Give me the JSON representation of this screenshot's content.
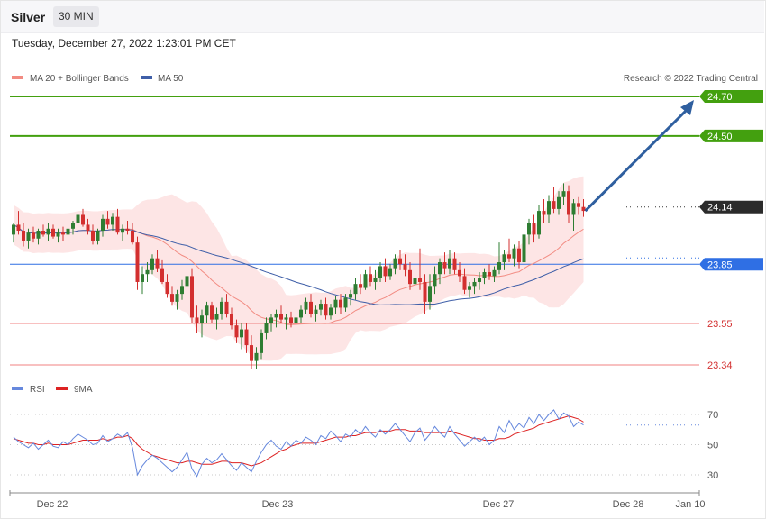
{
  "header": {
    "asset": "Silver",
    "timeframe": "30 MIN",
    "datetime": "Tuesday, December 27, 2022 1:23:01 PM CET"
  },
  "legend": {
    "ma20_label": "MA 20 + Bollinger Bands",
    "ma50_label": "MA 50",
    "credit": "Research © 2022 Trading Central",
    "rsi_label": "RSI",
    "rsi_ma_label": "9MA"
  },
  "colors": {
    "up": "#2e7d32",
    "down": "#d32f2f",
    "ma20": "#f28b82",
    "band_fill": "#fde2e2",
    "ma50": "#3f5fa8",
    "target": "#43a00f",
    "pivot": "#2f6fe4",
    "support": "#f08080",
    "arrow": "#2f5f9f",
    "rsi": "#6688dd",
    "rsi_ma": "#dd2222"
  },
  "chart_data": [
    {
      "type": "candlestick",
      "series": [
        {
          "name": "Silver",
          "ohlc": [
            [
              24.0,
              24.06,
              23.96,
              24.05
            ],
            [
              24.05,
              24.12,
              24.0,
              24.02
            ],
            [
              24.02,
              24.06,
              23.94,
              23.97
            ],
            [
              23.97,
              24.03,
              23.93,
              24.01
            ],
            [
              24.01,
              24.04,
              23.96,
              23.98
            ],
            [
              23.98,
              24.03,
              23.95,
              24.02
            ],
            [
              24.02,
              24.05,
              23.99,
              24.0
            ],
            [
              24.0,
              24.06,
              23.97,
              24.03
            ],
            [
              24.03,
              24.05,
              23.98,
              23.99
            ],
            [
              23.99,
              24.03,
              23.96,
              24.01
            ],
            [
              24.01,
              24.04,
              23.97,
              24.0
            ],
            [
              24.0,
              24.05,
              23.96,
              24.03
            ],
            [
              24.03,
              24.07,
              24.0,
              24.06
            ],
            [
              24.06,
              24.12,
              24.03,
              24.1
            ],
            [
              24.1,
              24.13,
              24.04,
              24.05
            ],
            [
              24.05,
              24.08,
              24.0,
              24.02
            ],
            [
              24.02,
              24.05,
              23.95,
              23.97
            ],
            [
              23.97,
              24.03,
              23.95,
              24.02
            ],
            [
              24.02,
              24.1,
              23.99,
              24.08
            ],
            [
              24.08,
              24.12,
              24.03,
              24.05
            ],
            [
              24.05,
              24.11,
              24.02,
              24.09
            ],
            [
              24.09,
              24.13,
              24.0,
              24.01
            ],
            [
              24.01,
              24.05,
              23.97,
              24.03
            ],
            [
              24.03,
              24.07,
              24.0,
              24.02
            ],
            [
              24.02,
              24.06,
              23.95,
              23.96
            ],
            [
              23.96,
              23.99,
              23.72,
              23.76
            ],
            [
              23.76,
              23.84,
              23.7,
              23.8
            ],
            [
              23.8,
              23.86,
              23.76,
              23.82
            ],
            [
              23.82,
              23.9,
              23.8,
              23.88
            ],
            [
              23.88,
              23.92,
              23.81,
              23.83
            ],
            [
              23.83,
              23.87,
              23.75,
              23.76
            ],
            [
              23.76,
              23.8,
              23.68,
              23.7
            ],
            [
              23.7,
              23.74,
              23.64,
              23.66
            ],
            [
              23.66,
              23.72,
              23.62,
              23.7
            ],
            [
              23.7,
              23.77,
              23.67,
              23.74
            ],
            [
              23.74,
              23.88,
              23.72,
              23.79
            ],
            [
              23.79,
              23.83,
              23.55,
              23.58
            ],
            [
              23.58,
              23.64,
              23.5,
              23.55
            ],
            [
              23.55,
              23.62,
              23.48,
              23.59
            ],
            [
              23.59,
              23.66,
              23.55,
              23.64
            ],
            [
              23.64,
              23.66,
              23.55,
              23.57
            ],
            [
              23.57,
              23.63,
              23.52,
              23.6
            ],
            [
              23.6,
              23.68,
              23.57,
              23.66
            ],
            [
              23.66,
              23.7,
              23.58,
              23.6
            ],
            [
              23.6,
              23.63,
              23.52,
              23.54
            ],
            [
              23.54,
              23.57,
              23.45,
              23.48
            ],
            [
              23.48,
              23.55,
              23.42,
              23.52
            ],
            [
              23.52,
              23.55,
              23.4,
              23.44
            ],
            [
              23.44,
              23.49,
              23.32,
              23.36
            ],
            [
              23.36,
              23.43,
              23.32,
              23.4
            ],
            [
              23.4,
              23.52,
              23.37,
              23.5
            ],
            [
              23.5,
              23.58,
              23.47,
              23.55
            ],
            [
              23.55,
              23.6,
              23.51,
              23.58
            ],
            [
              23.58,
              23.62,
              23.53,
              23.6
            ],
            [
              23.6,
              23.64,
              23.55,
              23.57
            ],
            [
              23.57,
              23.6,
              23.52,
              23.58
            ],
            [
              23.58,
              23.61,
              23.53,
              23.55
            ],
            [
              23.55,
              23.6,
              23.52,
              23.58
            ],
            [
              23.58,
              23.64,
              23.55,
              23.62
            ],
            [
              23.62,
              23.68,
              23.6,
              23.66
            ],
            [
              23.66,
              23.7,
              23.58,
              23.6
            ],
            [
              23.6,
              23.64,
              23.56,
              23.62
            ],
            [
              23.62,
              23.67,
              23.59,
              23.65
            ],
            [
              23.65,
              23.68,
              23.57,
              23.59
            ],
            [
              23.59,
              23.65,
              23.57,
              23.63
            ],
            [
              23.63,
              23.69,
              23.6,
              23.67
            ],
            [
              23.67,
              23.7,
              23.6,
              23.63
            ],
            [
              23.63,
              23.7,
              23.61,
              23.68
            ],
            [
              23.68,
              23.72,
              23.64,
              23.7
            ],
            [
              23.7,
              23.78,
              23.67,
              23.75
            ],
            [
              23.75,
              23.8,
              23.7,
              23.73
            ],
            [
              23.73,
              23.82,
              23.72,
              23.8
            ],
            [
              23.8,
              23.84,
              23.74,
              23.76
            ],
            [
              23.76,
              23.82,
              23.72,
              23.78
            ],
            [
              23.78,
              23.86,
              23.76,
              23.84
            ],
            [
              23.84,
              23.88,
              23.76,
              23.79
            ],
            [
              23.79,
              23.85,
              23.77,
              23.83
            ],
            [
              23.83,
              23.9,
              23.8,
              23.88
            ],
            [
              23.88,
              23.92,
              23.82,
              23.85
            ],
            [
              23.85,
              23.9,
              23.79,
              23.82
            ],
            [
              23.82,
              23.86,
              23.72,
              23.75
            ],
            [
              23.75,
              23.8,
              23.7,
              23.78
            ],
            [
              23.78,
              23.93,
              23.72,
              23.76
            ],
            [
              23.76,
              23.8,
              23.6,
              23.66
            ],
            [
              23.66,
              23.8,
              23.62,
              23.74
            ],
            [
              23.74,
              23.84,
              23.7,
              23.8
            ],
            [
              23.8,
              23.88,
              23.75,
              23.86
            ],
            [
              23.86,
              23.91,
              23.8,
              23.83
            ],
            [
              23.83,
              23.92,
              23.8,
              23.88
            ],
            [
              23.88,
              23.91,
              23.8,
              23.82
            ],
            [
              23.82,
              23.86,
              23.76,
              23.79
            ],
            [
              23.79,
              23.83,
              23.7,
              23.72
            ],
            [
              23.72,
              23.76,
              23.68,
              23.74
            ],
            [
              23.74,
              23.78,
              23.7,
              23.76
            ],
            [
              23.76,
              23.81,
              23.72,
              23.78
            ],
            [
              23.78,
              23.83,
              23.75,
              23.81
            ],
            [
              23.81,
              23.85,
              23.77,
              23.79
            ],
            [
              23.79,
              23.84,
              23.76,
              23.82
            ],
            [
              23.82,
              23.96,
              23.8,
              23.86
            ],
            [
              23.86,
              23.92,
              23.82,
              23.9
            ],
            [
              23.9,
              23.98,
              23.86,
              23.88
            ],
            [
              23.88,
              23.95,
              23.84,
              23.93
            ],
            [
              23.93,
              23.97,
              23.83,
              23.86
            ],
            [
              23.86,
              24.03,
              23.82,
              24.0
            ],
            [
              24.0,
              24.08,
              23.95,
              24.06
            ],
            [
              24.06,
              24.1,
              23.96,
              24.0
            ],
            [
              24.0,
              24.15,
              23.98,
              24.12
            ],
            [
              24.12,
              24.18,
              24.06,
              24.1
            ],
            [
              24.1,
              24.2,
              24.06,
              24.17
            ],
            [
              24.17,
              24.24,
              24.11,
              24.13
            ],
            [
              24.13,
              24.22,
              24.1,
              24.19
            ],
            [
              24.19,
              24.26,
              24.15,
              24.22
            ],
            [
              24.22,
              24.25,
              24.06,
              24.1
            ],
            [
              24.1,
              24.18,
              24.02,
              24.16
            ],
            [
              24.16,
              24.19,
              24.1,
              24.14
            ],
            [
              24.14,
              24.18,
              24.09,
              24.12
            ]
          ]
        }
      ],
      "overlays": [
        "MA 20 + Bollinger Bands",
        "MA 50"
      ],
      "levels": [
        {
          "value": 24.7,
          "label": "24.70",
          "role": "target"
        },
        {
          "value": 24.5,
          "label": "24.50",
          "role": "target"
        },
        {
          "value": 24.14,
          "label": "24.14",
          "role": "last"
        },
        {
          "value": 23.85,
          "label": "23.85",
          "role": "pivot"
        },
        {
          "value": 23.55,
          "label": "23.55",
          "role": "support"
        },
        {
          "value": 23.34,
          "label": "23.34",
          "role": "support"
        }
      ],
      "x_labels": [
        "Dec 22",
        "Dec 23",
        "Dec 27",
        "Dec 28",
        "Jan 10"
      ]
    },
    {
      "type": "line",
      "series": [
        {
          "name": "RSI",
          "values": [
            55,
            52,
            50,
            48,
            51,
            47,
            50,
            53,
            49,
            48,
            52,
            50,
            54,
            57,
            55,
            53,
            50,
            51,
            56,
            52,
            54,
            57,
            55,
            58,
            48,
            30,
            36,
            40,
            43,
            41,
            38,
            35,
            32,
            35,
            40,
            45,
            34,
            29,
            37,
            41,
            38,
            40,
            44,
            40,
            36,
            33,
            38,
            35,
            32,
            39,
            45,
            50,
            53,
            49,
            47,
            52,
            49,
            53,
            51,
            55,
            53,
            50,
            56,
            54,
            59,
            56,
            52,
            57,
            55,
            60,
            57,
            62,
            58,
            55,
            60,
            57,
            60,
            64,
            60,
            56,
            52,
            58,
            61,
            53,
            57,
            62,
            58,
            55,
            62,
            57,
            53,
            49,
            52,
            55,
            52,
            55,
            50,
            53,
            62,
            58,
            66,
            60,
            64,
            61,
            68,
            64,
            70,
            66,
            70,
            73,
            67,
            71,
            69,
            62,
            65,
            63
          ]
        },
        {
          "name": "9MA",
          "values": [
            54,
            53,
            52,
            51,
            51,
            50,
            50,
            51,
            50,
            50,
            50,
            50,
            51,
            52,
            53,
            53,
            53,
            53,
            54,
            53,
            54,
            55,
            55,
            56,
            54,
            50,
            47,
            45,
            43,
            42,
            41,
            40,
            39,
            38,
            38,
            39,
            39,
            38,
            37,
            37,
            37,
            38,
            39,
            39,
            38,
            38,
            38,
            37,
            36,
            37,
            38,
            40,
            42,
            44,
            46,
            47,
            49,
            50,
            51,
            51,
            51,
            51,
            52,
            53,
            54,
            55,
            55,
            55,
            56,
            56,
            57,
            58,
            58,
            58,
            59,
            59,
            59,
            60,
            60,
            60,
            59,
            59,
            59,
            58,
            58,
            58,
            58,
            58,
            59,
            58,
            57,
            56,
            55,
            54,
            54,
            53,
            53,
            53,
            54,
            54,
            55,
            57,
            58,
            59,
            60,
            61,
            63,
            64,
            65,
            66,
            67,
            68,
            69,
            68,
            67,
            65
          ]
        }
      ],
      "y_ticks": [
        "70",
        "50",
        "30"
      ],
      "ylim": [
        15,
        85
      ]
    }
  ]
}
